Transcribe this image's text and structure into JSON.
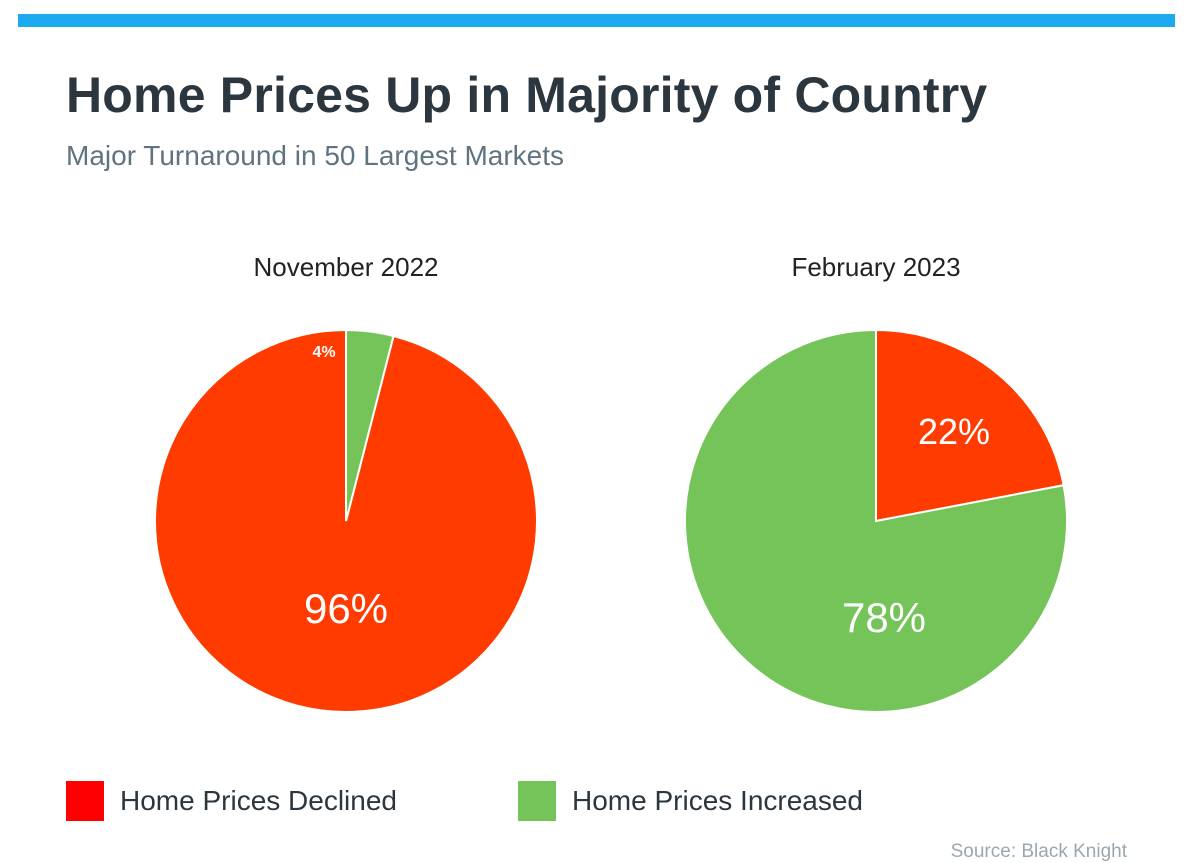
{
  "header": {
    "title": "Home Prices Up in Majority of Country",
    "subtitle": "Major Turnaround in 50 Largest Markets"
  },
  "colors": {
    "accent_bar": "#1eaaf1",
    "declined": "#ff3b00",
    "increased": "#75c45a",
    "legend_declined": "#ff0000",
    "legend_increased": "#75c45a"
  },
  "chart_data": [
    {
      "type": "pie",
      "title": "November 2022",
      "categories": [
        "Home Prices Declined",
        "Home Prices Increased"
      ],
      "values": [
        96,
        4
      ],
      "labels": [
        "96%",
        "4%"
      ],
      "colors": [
        "#ff3b00",
        "#75c45a"
      ]
    },
    {
      "type": "pie",
      "title": "February 2023",
      "categories": [
        "Home Prices Declined",
        "Home Prices Increased"
      ],
      "values": [
        22,
        78
      ],
      "labels": [
        "22%",
        "78%"
      ],
      "colors": [
        "#ff3b00",
        "#75c45a"
      ]
    }
  ],
  "legend": {
    "items": [
      {
        "label": "Home Prices Declined",
        "color": "#ff0000"
      },
      {
        "label": "Home Prices Increased",
        "color": "#75c45a"
      }
    ]
  },
  "source": "Source: Black Knight"
}
